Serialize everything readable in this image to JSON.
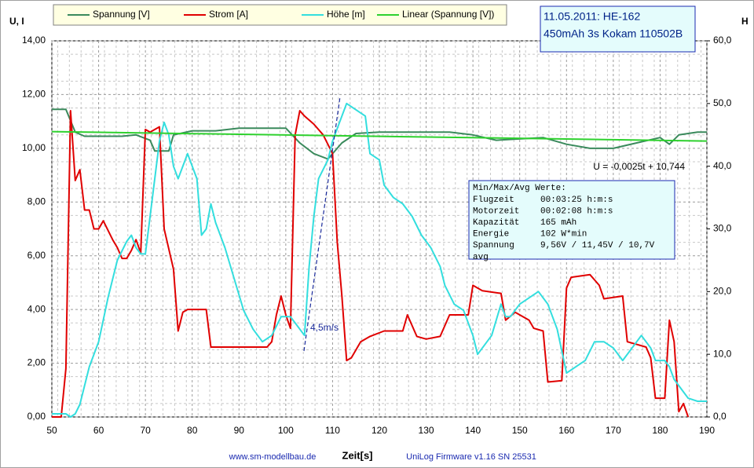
{
  "chart_data": {
    "type": "line",
    "title": [
      "11.05.2011: HE-162",
      "450mAh 3s Kokam 110502B"
    ],
    "y_label": "U, I",
    "y2_label": "H",
    "x_label": "Zeit[s]",
    "footer": [
      "www.sm-modellbau.de",
      "UniLog Firmware v1.16 SN 25531"
    ],
    "annotations": [
      "U = -0,0025t + 10,744",
      "4,5m/s"
    ],
    "info_box": {
      "title": "Min/Max/Avg Werte:",
      "rows": [
        [
          "Flugzeit",
          "00:03:25 h:m:s"
        ],
        [
          "Motorzeit",
          "00:02:08 h:m:s"
        ],
        [
          "Kapazität",
          "165 mAh"
        ],
        [
          "Energie",
          "102 W*min"
        ],
        [
          "Spannung",
          "9,56V / 11,45V / 10,7V"
        ]
      ],
      "wrap": "avg"
    },
    "xlim": [
      50,
      190
    ],
    "xticks": [
      50,
      60,
      70,
      80,
      90,
      100,
      110,
      120,
      130,
      140,
      150,
      160,
      170,
      180,
      190
    ],
    "ylim": [
      0,
      14
    ],
    "yticks": [
      {
        "value": 0,
        "label": "0,00"
      },
      {
        "value": 2,
        "label": "2,00"
      },
      {
        "value": 4,
        "label": "4,00"
      },
      {
        "value": 6,
        "label": "6,00"
      },
      {
        "value": 8,
        "label": "8,00"
      },
      {
        "value": 10,
        "label": "10,00"
      },
      {
        "value": 12,
        "label": "12,00"
      },
      {
        "value": 14,
        "label": "14,00"
      }
    ],
    "y2lim": [
      0,
      60
    ],
    "y2ticks": [
      {
        "value": 0,
        "label": "0,0"
      },
      {
        "value": 10,
        "label": "10,0"
      },
      {
        "value": 20,
        "label": "20,0"
      },
      {
        "value": 30,
        "label": "30,0"
      },
      {
        "value": 40,
        "label": "40,0"
      },
      {
        "value": 50,
        "label": "50,0"
      },
      {
        "value": 60,
        "label": "60,0"
      }
    ],
    "grid": true,
    "series": [
      {
        "name": "Spannung [V]",
        "color": "#3a8a5c",
        "x": [
          50,
          53,
          55,
          57,
          65,
          68,
          71,
          72,
          75,
          76,
          80,
          85,
          90,
          100,
          103,
          106,
          109,
          112,
          115,
          120,
          135,
          140,
          145,
          150,
          155,
          160,
          165,
          170,
          175,
          180,
          182,
          184,
          188,
          190
        ],
        "values": [
          11.45,
          11.45,
          10.6,
          10.45,
          10.45,
          10.5,
          10.3,
          9.9,
          9.9,
          10.5,
          10.65,
          10.65,
          10.75,
          10.75,
          10.2,
          9.8,
          9.6,
          10.2,
          10.55,
          10.6,
          10.6,
          10.5,
          10.3,
          10.35,
          10.4,
          10.15,
          10,
          10,
          10.2,
          10.4,
          10.15,
          10.5,
          10.6,
          10.6
        ]
      },
      {
        "name": "Strom [A]",
        "color": "#e00000",
        "x": [
          50,
          52,
          53,
          54,
          55,
          56,
          57,
          58,
          59,
          60,
          61,
          63,
          64,
          65,
          66,
          67,
          68,
          69,
          70,
          71,
          72,
          73,
          74,
          76,
          77,
          78,
          79,
          83,
          84,
          96,
          97,
          98,
          99,
          100,
          101,
          102,
          103,
          104,
          106,
          108,
          110,
          111,
          112,
          113,
          114,
          116,
          118,
          121,
          125,
          126,
          128,
          130,
          133,
          135,
          139,
          140,
          142,
          146,
          147,
          149,
          151,
          152,
          153,
          155,
          156,
          159,
          160,
          161,
          165,
          167,
          168,
          172,
          173,
          175,
          177,
          178,
          179,
          181,
          182,
          183,
          184,
          185,
          186
        ],
        "values": [
          0,
          0,
          1.8,
          11.4,
          8.8,
          9.2,
          7.7,
          7.7,
          7,
          7,
          7.3,
          6.6,
          6.3,
          5.9,
          5.9,
          6.2,
          6.6,
          6.1,
          10.7,
          10.6,
          10.7,
          10.8,
          7,
          5.5,
          3.2,
          3.9,
          4,
          4,
          2.6,
          2.6,
          2.8,
          3.8,
          4.5,
          3.8,
          3.3,
          10.5,
          11.4,
          11.2,
          10.9,
          10.5,
          9.8,
          6.5,
          4.5,
          2.1,
          2.2,
          2.8,
          3,
          3.2,
          3.2,
          3.8,
          3,
          2.9,
          3,
          3.8,
          3.8,
          4.9,
          4.7,
          4.6,
          3.6,
          3.9,
          3.7,
          3.6,
          3.3,
          3.2,
          1.3,
          1.35,
          4.8,
          5.2,
          5.3,
          4.9,
          4.4,
          4.5,
          2.8,
          2.7,
          2.6,
          2.2,
          0.7,
          0.7,
          3.6,
          2.8,
          0.2,
          0.5,
          0
        ]
      },
      {
        "name": "Höhe [m]",
        "color": "#33dede",
        "axis": "y2",
        "x": [
          50,
          53,
          54,
          55,
          56,
          58,
          60,
          62,
          64,
          66,
          67,
          68,
          69,
          70,
          71,
          73,
          74,
          75,
          76,
          77,
          79,
          81,
          82,
          83,
          84,
          85,
          87,
          89,
          91,
          93,
          95,
          97,
          99,
          101,
          103,
          104,
          105,
          106,
          107,
          109,
          110,
          112,
          113,
          115,
          117,
          118,
          120,
          121,
          123,
          125,
          127,
          129,
          131,
          133,
          134,
          136,
          138,
          140,
          141,
          142,
          144,
          146,
          147,
          148,
          150,
          152,
          154,
          156,
          158,
          160,
          162,
          164,
          166,
          168,
          170,
          172,
          174,
          176,
          178,
          179,
          181,
          182,
          183,
          185,
          186,
          188,
          190
        ],
        "values": [
          0.5,
          0.5,
          0,
          0.5,
          2,
          8,
          12,
          19,
          25,
          28,
          29,
          27,
          26,
          26,
          32,
          44,
          47,
          45,
          40,
          38,
          42,
          38,
          29,
          30,
          34,
          31,
          27,
          22,
          17,
          14,
          12,
          13,
          16,
          16,
          14,
          13,
          24,
          32,
          38,
          41,
          44,
          48,
          50,
          49,
          48,
          42,
          41,
          37,
          35,
          34,
          32,
          29,
          27,
          24,
          21,
          18,
          17,
          13,
          10,
          11,
          13,
          18,
          16,
          16,
          18,
          19,
          20,
          18,
          14,
          7,
          8,
          9,
          12,
          12,
          11,
          9,
          11,
          13,
          11,
          9,
          9,
          8,
          6,
          4,
          3,
          2.5,
          2.5
        ]
      },
      {
        "name": "Linear (Spannung [V])",
        "color": "#2ed12e",
        "x": [
          50,
          190
        ],
        "values": [
          10.62,
          10.27
        ]
      }
    ]
  }
}
